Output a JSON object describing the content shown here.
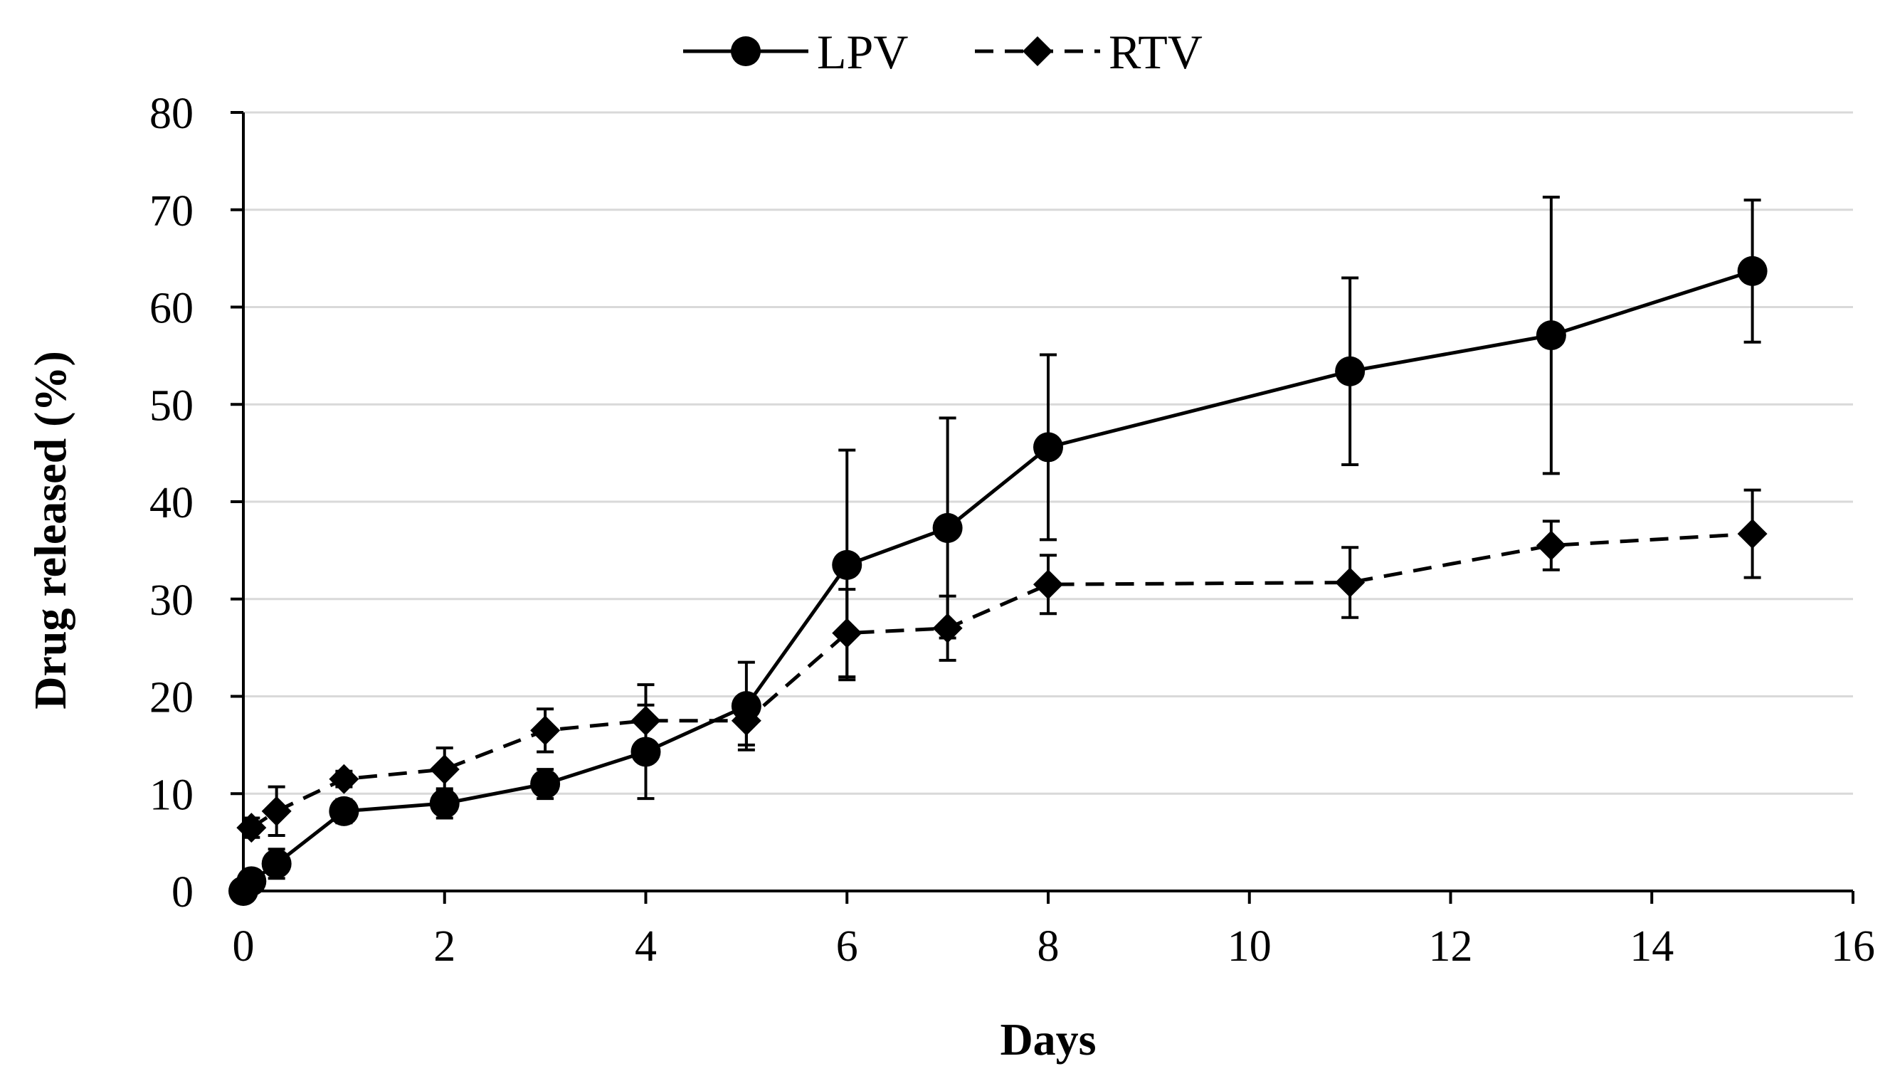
{
  "chart_data": {
    "type": "line",
    "title": "",
    "xlabel": "Days",
    "ylabel": "Drug released (%)",
    "xlim": [
      0,
      16
    ],
    "ylim": [
      0,
      80
    ],
    "x_ticks": [
      "0",
      "2",
      "4",
      "6",
      "8",
      "10",
      "12",
      "14",
      "16"
    ],
    "y_ticks": [
      "0",
      "10",
      "20",
      "30",
      "40",
      "50",
      "60",
      "70",
      "80"
    ],
    "grid": "horizontal",
    "legend_position": "top-center",
    "series": [
      {
        "name": "LPV",
        "marker": "circle",
        "line_style": "solid",
        "x": [
          0,
          0.08,
          0.33,
          1,
          2,
          3,
          4,
          5,
          6,
          7,
          8,
          11,
          13,
          15
        ],
        "values": [
          0,
          1.0,
          2.8,
          8.2,
          9.0,
          11.0,
          14.3,
          19.0,
          33.5,
          37.3,
          45.6,
          53.4,
          57.1,
          63.7
        ],
        "errors": [
          0,
          0.5,
          1.5,
          1.2,
          1.5,
          1.5,
          4.8,
          4.5,
          11.8,
          11.3,
          9.5,
          9.6,
          14.2,
          7.3
        ]
      },
      {
        "name": "RTV",
        "marker": "diamond",
        "line_style": "dashed",
        "x": [
          0.08,
          0.33,
          1,
          2,
          3,
          4,
          5,
          6,
          7,
          8,
          11,
          13,
          15
        ],
        "values": [
          6.5,
          8.2,
          11.5,
          12.5,
          16.5,
          17.5,
          17.5,
          26.5,
          27.0,
          31.5,
          31.7,
          35.5,
          36.7
        ],
        "errors": [
          1.0,
          2.5,
          0.8,
          2.2,
          2.2,
          3.7,
          2.5,
          4.5,
          3.3,
          3.0,
          3.6,
          2.5,
          4.5
        ]
      }
    ]
  },
  "colors": {
    "line": "#000000",
    "grid": "#d9d9d9",
    "background": "#ffffff"
  }
}
